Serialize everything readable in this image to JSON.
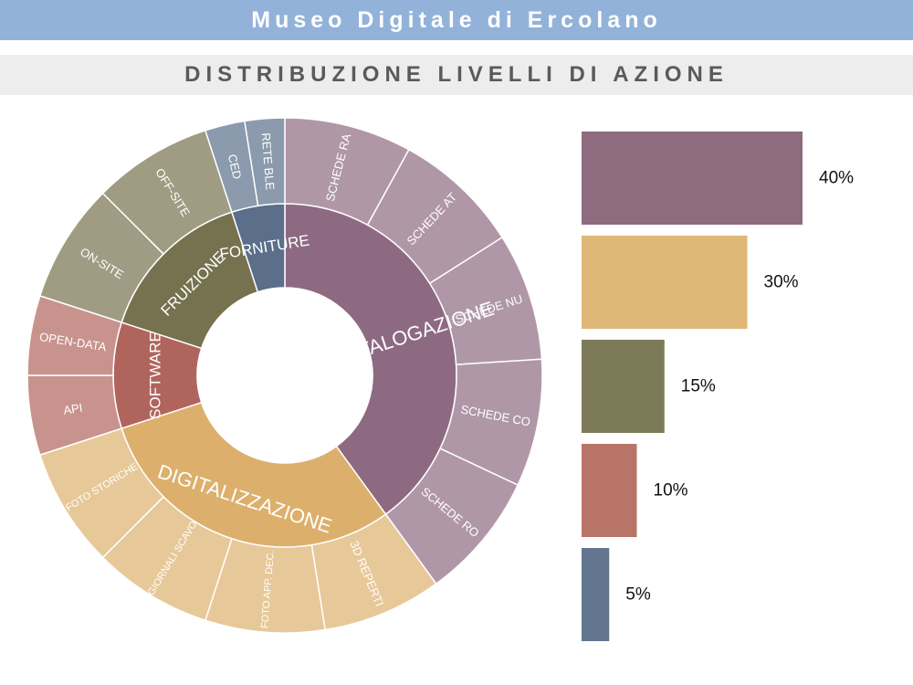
{
  "header": {
    "title": "Museo Digitale di Ercolano"
  },
  "subheader": {
    "title": "DISTRIBUZIONE LIVELLI DI AZIONE"
  },
  "chart_data": [
    {
      "type": "sunburst",
      "title": "DISTRIBUZIONE LIVELLI DI AZIONE",
      "categories": [
        {
          "name": "CATALOGAZIONE",
          "value": 40,
          "color": "#8d6a82",
          "children": [
            "SCHEDE RA",
            "SCHEDE AT",
            "SCHEDE NU",
            "SCHEDE CO",
            "SCHEDE RO"
          ]
        },
        {
          "name": "DIGITALIZZAZIONE",
          "value": 30,
          "color": "#dcb06c",
          "children": [
            "3D REPERTI",
            "FOTO APP. DEC.",
            "GIORNALI SCAVO",
            "FOTO STORICHE"
          ]
        },
        {
          "name": "SOFTWARE",
          "value": 10,
          "color": "#b0655c",
          "children": [
            "API",
            "OPEN-DATA"
          ]
        },
        {
          "name": "FRUIZIONE",
          "value": 15,
          "color": "#76714e",
          "children": [
            "ON-SITE",
            "OFF-SITE"
          ]
        },
        {
          "name": "FORNITURE",
          "value": 5,
          "color": "#5b6e8a",
          "children": [
            "CED",
            "RETE BLE"
          ]
        }
      ]
    },
    {
      "type": "bar",
      "orientation": "horizontal",
      "values": [
        40,
        30,
        15,
        10,
        5
      ],
      "labels": [
        "40%",
        "30%",
        "15%",
        "10%",
        "5%"
      ],
      "colors": [
        "#8f6b80",
        "#dfb877",
        "#7d7b57",
        "#b77467",
        "#63768f"
      ]
    }
  ]
}
